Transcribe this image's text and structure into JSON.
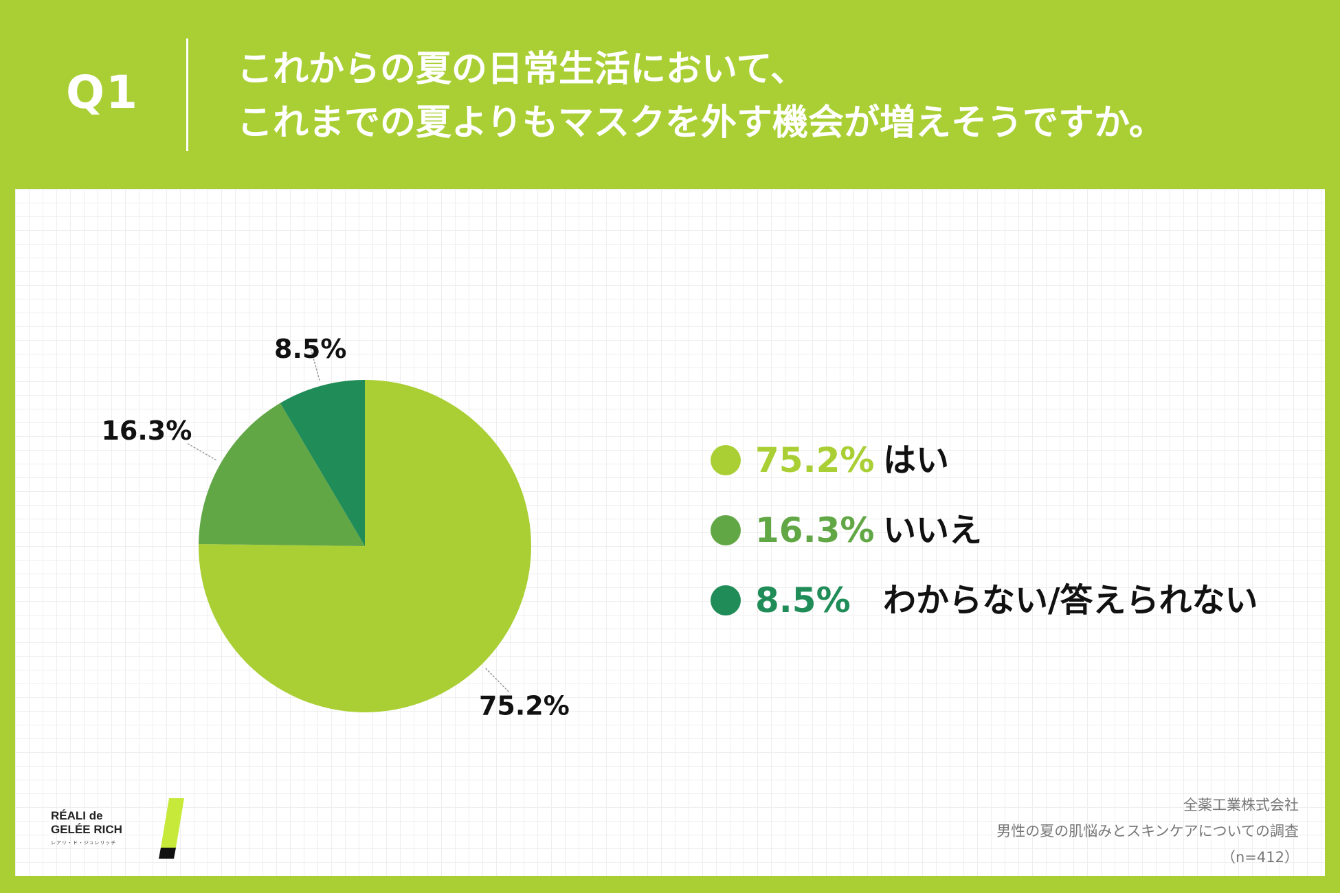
{
  "header": {
    "question_number": "Q1",
    "title_line1": "これからの夏の日常生活において、",
    "title_line2": "これまでの夏よりもマスクを外す機会が増えそうですか。"
  },
  "colors": {
    "background": "#a9cf34",
    "series": [
      "#a9cf34",
      "#62a745",
      "#208c58"
    ]
  },
  "chart_data": {
    "type": "pie",
    "title": "これからの夏の日常生活において、これまでの夏よりもマスクを外す機会が増えそうですか。",
    "categories": [
      "はい",
      "いいえ",
      "わからない/答えられない"
    ],
    "values": [
      75.2,
      16.3,
      8.5
    ],
    "labels": [
      "75.2%",
      "16.3%",
      "8.5%"
    ],
    "unit": "%",
    "start_angle": "12 o'clock",
    "direction": "clockwise",
    "legend_placement": "right"
  },
  "legend": {
    "items": [
      {
        "pct": "75.2%",
        "label": "はい"
      },
      {
        "pct": "16.3%",
        "label": "いいえ"
      },
      {
        "pct": "8.5%",
        "label": "わからない/答えられない"
      }
    ]
  },
  "logo": {
    "line1": "RÉALI de",
    "line2": "GELÉE RICH",
    "sub": "レアリ・ド・ジュレリッチ"
  },
  "source": {
    "company": "全薬工業株式会社",
    "survey": "男性の夏の肌悩みとスキンケアについての調査",
    "sample": "（n=412）"
  }
}
